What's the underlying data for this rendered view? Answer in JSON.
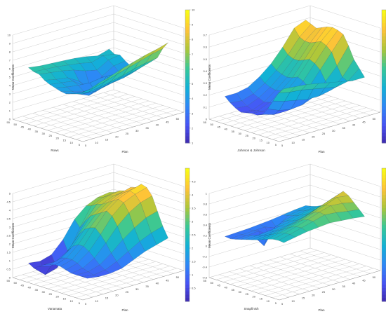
{
  "figure": {
    "background": "#ffffff",
    "colormap": "parula"
  },
  "chart_data": [
    {
      "type": "surface",
      "xlabel": "Rows",
      "ylabel": "Plan",
      "zlabel": "Mean Coefficients",
      "x_ticks": [
        "55",
        "50",
        "45",
        "40",
        "35",
        "30",
        "25",
        "20",
        "15",
        "10",
        "5"
      ],
      "y_ticks": [
        "5",
        "10",
        "15",
        "20",
        "25",
        "30",
        "35",
        "40",
        "45",
        "50",
        "55"
      ],
      "z_ticks": [
        "0",
        "1",
        "2",
        "3",
        "4",
        "5",
        "6",
        "7",
        "8",
        "9",
        "10"
      ],
      "zlim": [
        0,
        10
      ],
      "colorbar": {
        "ticks": [
          "10",
          "9",
          "8",
          "7",
          "6",
          "5",
          "4",
          "3",
          "2",
          "1"
        ],
        "range": [
          1,
          10
        ]
      },
      "grid_profile": [
        [
          5.4,
          5.0,
          5.1,
          4.6,
          4.2,
          4.5,
          4.8,
          5.2,
          5.6,
          6.2,
          7.5,
          8.4
        ],
        [
          5.0,
          5.2,
          4.9,
          4.4,
          3.9,
          3.6,
          4.0,
          4.6,
          5.2,
          6.0,
          7.2,
          8.0
        ],
        [
          5.3,
          4.8,
          4.1,
          3.6,
          3.3,
          3.8,
          4.5,
          4.2,
          4.9,
          5.7,
          6.8,
          7.7
        ],
        [
          5.5,
          5.1,
          4.4,
          2.4,
          3.0,
          4.2,
          4.6,
          4.0,
          4.6,
          5.3,
          6.4,
          7.3
        ],
        [
          5.6,
          5.3,
          4.9,
          3.8,
          3.4,
          4.0,
          3.1,
          3.7,
          4.3,
          5.0,
          6.0,
          6.9
        ],
        [
          5.7,
          5.5,
          5.2,
          4.6,
          4.4,
          4.1,
          3.6,
          3.3,
          4.0,
          4.7,
          5.6,
          6.4
        ],
        [
          5.8,
          5.6,
          5.4,
          4.8,
          4.6,
          4.3,
          4.0,
          3.9,
          4.1,
          4.5,
          5.2,
          6.0
        ],
        [
          6.0,
          5.7,
          5.6,
          5.1,
          4.8,
          4.6,
          4.4,
          4.3,
          4.5,
          4.8,
          5.1,
          5.5
        ]
      ]
    },
    {
      "type": "surface",
      "xlabel": "Johnson & Johnson",
      "ylabel": "Plan",
      "zlabel": "Mean Coefficients",
      "x_ticks": [
        "55",
        "50",
        "45",
        "40",
        "35",
        "30",
        "25",
        "20",
        "15",
        "10",
        "5"
      ],
      "y_ticks": [
        "5",
        "10",
        "15",
        "20",
        "25",
        "30",
        "35",
        "40",
        "45",
        "50",
        "55"
      ],
      "z_ticks": [
        "0",
        "0.1",
        "0.2",
        "0.3",
        "0.4",
        "0.5",
        "0.6",
        "0.7"
      ],
      "zlim": [
        0,
        0.7
      ],
      "colorbar": {
        "ticks": [
          "0.6",
          "0.5",
          "0.4",
          "0.3",
          "0.2",
          "0.1"
        ],
        "range": [
          0,
          0.65
        ]
      },
      "grid_profile": [
        [
          0.62,
          0.6,
          0.58,
          0.6,
          0.62,
          0.63,
          0.62,
          0.6,
          0.52,
          0.42,
          0.36,
          0.3
        ],
        [
          0.58,
          0.52,
          0.5,
          0.5,
          0.52,
          0.54,
          0.52,
          0.48,
          0.38,
          0.3,
          0.28,
          0.3
        ],
        [
          0.45,
          0.4,
          0.38,
          0.38,
          0.4,
          0.42,
          0.4,
          0.36,
          0.28,
          0.22,
          0.26,
          0.32
        ],
        [
          0.34,
          0.3,
          0.28,
          0.27,
          0.28,
          0.3,
          0.28,
          0.24,
          0.18,
          0.2,
          0.28,
          0.34
        ],
        [
          0.26,
          0.22,
          0.2,
          0.19,
          0.2,
          0.21,
          0.19,
          0.16,
          0.14,
          0.2,
          0.3,
          0.36
        ],
        [
          0.2,
          0.16,
          0.14,
          0.12,
          0.13,
          0.14,
          0.12,
          0.1,
          0.13,
          0.22,
          0.32,
          0.38
        ],
        [
          0.18,
          0.13,
          0.1,
          0.08,
          0.09,
          0.1,
          0.09,
          0.1,
          0.15,
          0.24,
          0.33,
          0.39
        ],
        [
          0.18,
          0.14,
          0.11,
          0.09,
          0.1,
          0.11,
          0.11,
          0.13,
          0.19,
          0.27,
          0.35,
          0.4
        ]
      ]
    },
    {
      "type": "surface",
      "xlabel": "Vanamata",
      "ylabel": "Plan",
      "zlabel": "Mean Coefficients",
      "x_ticks": [
        "55",
        "50",
        "45",
        "40",
        "35",
        "30",
        "25",
        "20",
        "15",
        "10",
        "5"
      ],
      "y_ticks": [
        "5",
        "10",
        "15",
        "20",
        "25",
        "30",
        "35",
        "40",
        "45",
        "50",
        "55"
      ],
      "z_ticks": [
        "0",
        "0.5",
        "1",
        "1.5",
        "2",
        "2.5",
        "3",
        "3.5",
        "4",
        "4.5",
        "5"
      ],
      "zlim": [
        0,
        5
      ],
      "colorbar": {
        "ticks": [
          "4.5",
          "4",
          "3.5",
          "3",
          "2.5",
          "2",
          "1.5",
          "1",
          "0.5"
        ],
        "range": [
          0,
          5
        ]
      },
      "grid_profile": [
        [
          3.6,
          3.7,
          3.9,
          4.0,
          4.3,
          4.4,
          4.7,
          4.6,
          4.2,
          3.4,
          2.6,
          2.0
        ],
        [
          3.5,
          3.6,
          3.8,
          3.9,
          4.1,
          4.3,
          4.5,
          4.4,
          4.0,
          3.2,
          2.4,
          1.8
        ],
        [
          3.2,
          3.3,
          3.5,
          3.6,
          3.8,
          4.0,
          4.2,
          4.1,
          3.6,
          2.8,
          2.1,
          1.6
        ],
        [
          2.6,
          2.2,
          2.7,
          3.1,
          3.3,
          3.5,
          3.7,
          3.5,
          3.0,
          2.3,
          1.7,
          1.3
        ],
        [
          1.6,
          0.9,
          1.6,
          2.2,
          2.6,
          2.8,
          2.9,
          2.6,
          2.2,
          1.7,
          1.3,
          1.0
        ],
        [
          0.9,
          0.2,
          0.9,
          1.4,
          1.8,
          2.0,
          2.0,
          1.8,
          1.5,
          1.2,
          1.0,
          0.9
        ],
        [
          0.7,
          0.0,
          0.6,
          1.0,
          1.3,
          1.4,
          1.4,
          1.3,
          1.1,
          1.0,
          0.9,
          0.9
        ],
        [
          0.8,
          0.6,
          0.8,
          1.0,
          1.1,
          1.2,
          1.2,
          1.1,
          1.0,
          1.0,
          1.0,
          1.0
        ]
      ]
    },
    {
      "type": "surface",
      "xlabel": "Snapfinish",
      "ylabel": "Plan",
      "zlabel": "Mean Coefficients",
      "x_ticks": [
        "55",
        "50",
        "45",
        "40",
        "35",
        "30",
        "25",
        "20",
        "15",
        "10",
        "5"
      ],
      "y_ticks": [
        "5",
        "10",
        "15",
        "20",
        "25",
        "30",
        "35",
        "40",
        "45",
        "50",
        "55"
      ],
      "z_ticks": [
        "-0.6",
        "-0.4",
        "-0.2",
        "0",
        "0.2",
        "0.4",
        "0.6",
        "0.8",
        "1"
      ],
      "zlim": [
        -0.6,
        1
      ],
      "colorbar": {
        "ticks": [
          "0.9",
          "0.8",
          "0.7",
          "0.6",
          "0.5",
          "0.4",
          "0.3",
          "0.2",
          "0.1",
          "0"
        ],
        "range": [
          -0.1,
          1
        ]
      },
      "grid_profile": [
        [
          0.3,
          0.32,
          0.35,
          0.4,
          0.45,
          0.55,
          0.7,
          0.8,
          0.75,
          0.65,
          0.55,
          0.45
        ],
        [
          0.28,
          0.3,
          0.33,
          0.38,
          0.42,
          0.5,
          0.62,
          0.72,
          0.78,
          0.7,
          0.58,
          0.48
        ],
        [
          0.25,
          0.27,
          0.3,
          0.34,
          0.38,
          0.44,
          0.54,
          0.64,
          0.7,
          0.72,
          0.62,
          0.5
        ],
        [
          0.22,
          0.1,
          0.25,
          0.3,
          0.33,
          0.38,
          0.46,
          0.55,
          0.62,
          0.66,
          0.64,
          0.52
        ],
        [
          0.2,
          0.18,
          0.05,
          0.26,
          0.3,
          0.33,
          0.4,
          0.47,
          0.54,
          0.58,
          0.58,
          0.5
        ],
        [
          0.18,
          0.17,
          0.2,
          -0.05,
          0.27,
          0.3,
          0.35,
          0.41,
          0.47,
          0.51,
          0.52,
          0.48
        ],
        [
          0.17,
          0.16,
          0.18,
          0.22,
          0.25,
          0.28,
          0.32,
          0.37,
          0.42,
          0.45,
          0.46,
          0.44
        ],
        [
          0.16,
          0.15,
          0.17,
          0.2,
          0.23,
          0.26,
          0.29,
          0.33,
          0.37,
          0.4,
          0.41,
          0.4
        ]
      ]
    }
  ]
}
